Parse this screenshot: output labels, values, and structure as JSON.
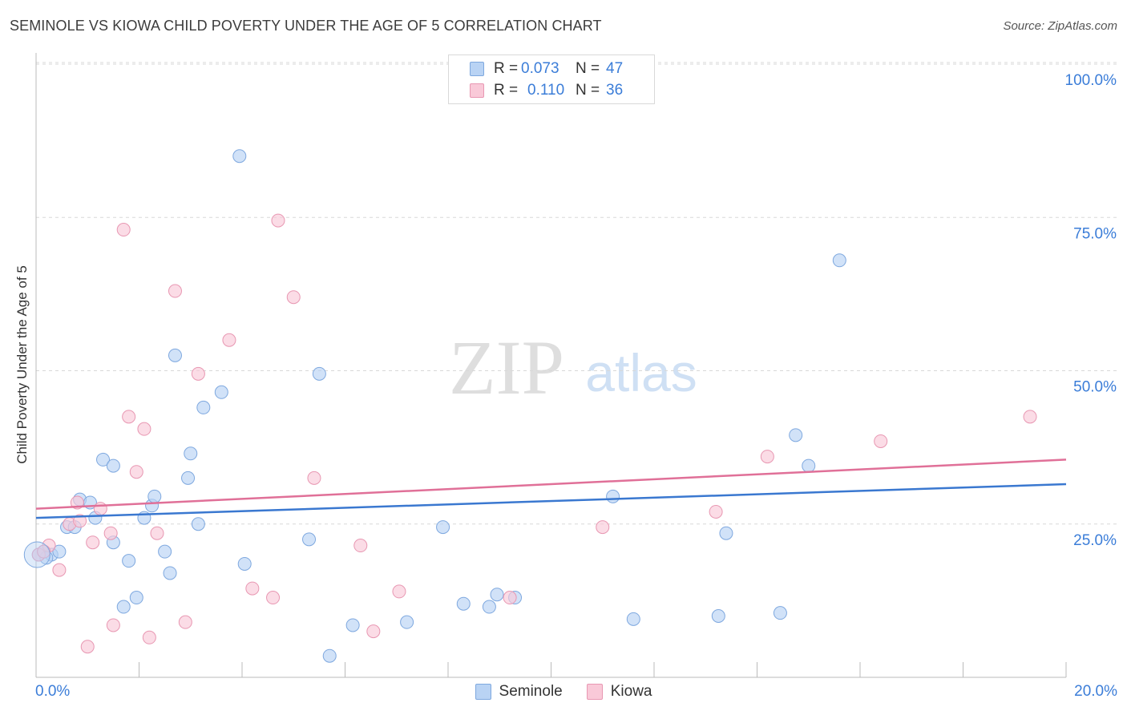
{
  "title": "SEMINOLE VS KIOWA CHILD POVERTY UNDER THE AGE OF 5 CORRELATION CHART",
  "source": "Source: ZipAtlas.com",
  "watermark": {
    "zip": "ZIP",
    "atlas": "atlas"
  },
  "legend_top": [
    {
      "r_label": "R =",
      "r_value": "0.073",
      "n_label": "N =",
      "n_value": "47"
    },
    {
      "r_label": "R =",
      "r_value": "0.110",
      "n_label": "N =",
      "n_value": "36"
    }
  ],
  "legend_bottom": [
    "Seminole",
    "Kiowa"
  ],
  "colors": {
    "seminole_fill": "#b9d3f4",
    "seminole_stroke": "#7ea8df",
    "seminole_line": "#3a78d0",
    "kiowa_fill": "#f9c9d8",
    "kiowa_stroke": "#e897b2",
    "kiowa_line": "#e07098",
    "axis_text": "#3b7dd8",
    "grid": "#d8d8d8"
  },
  "chart_data": {
    "type": "scatter",
    "title": "SEMINOLE VS KIOWA CHILD POVERTY UNDER THE AGE OF 5 CORRELATION CHART",
    "xlabel": "",
    "ylabel": "Child Poverty Under the Age of 5",
    "xlim": [
      0,
      20
    ],
    "ylim": [
      0,
      100
    ],
    "x_tick_labels": [
      "0.0%",
      "20.0%"
    ],
    "y_ticks": [
      25,
      50,
      75,
      100
    ],
    "y_tick_labels": [
      "25.0%",
      "50.0%",
      "75.0%",
      "100.0%"
    ],
    "grid": true,
    "legend_position": "top-center",
    "series": [
      {
        "name": "Seminole",
        "r": 0.073,
        "n": 47,
        "trend": {
          "x": [
            0,
            20
          ],
          "y": [
            26.0,
            31.5
          ]
        },
        "points": [
          {
            "x": 0.05,
            "y": 20.0
          },
          {
            "x": 0.15,
            "y": 20.5
          },
          {
            "x": 0.3,
            "y": 20.0
          },
          {
            "x": 0.45,
            "y": 20.5
          },
          {
            "x": 0.6,
            "y": 24.5
          },
          {
            "x": 0.75,
            "y": 24.5
          },
          {
            "x": 0.85,
            "y": 29.0
          },
          {
            "x": 1.05,
            "y": 28.5
          },
          {
            "x": 1.15,
            "y": 26.0
          },
          {
            "x": 1.3,
            "y": 35.5
          },
          {
            "x": 1.5,
            "y": 34.5
          },
          {
            "x": 1.5,
            "y": 22.0
          },
          {
            "x": 1.7,
            "y": 11.5
          },
          {
            "x": 1.8,
            "y": 19.0
          },
          {
            "x": 1.95,
            "y": 13.0
          },
          {
            "x": 2.1,
            "y": 26.0
          },
          {
            "x": 2.25,
            "y": 28.0
          },
          {
            "x": 2.3,
            "y": 29.5
          },
          {
            "x": 2.5,
            "y": 20.5
          },
          {
            "x": 2.6,
            "y": 17.0
          },
          {
            "x": 2.7,
            "y": 52.5
          },
          {
            "x": 2.95,
            "y": 32.5
          },
          {
            "x": 3.0,
            "y": 36.5
          },
          {
            "x": 3.15,
            "y": 25.0
          },
          {
            "x": 3.25,
            "y": 44.0
          },
          {
            "x": 3.6,
            "y": 46.5
          },
          {
            "x": 3.95,
            "y": 85.0
          },
          {
            "x": 4.05,
            "y": 18.5
          },
          {
            "x": 5.3,
            "y": 22.5
          },
          {
            "x": 5.5,
            "y": 49.5
          },
          {
            "x": 5.7,
            "y": 3.5
          },
          {
            "x": 6.15,
            "y": 8.5
          },
          {
            "x": 7.2,
            "y": 9.0
          },
          {
            "x": 7.9,
            "y": 24.5
          },
          {
            "x": 8.3,
            "y": 12.0
          },
          {
            "x": 8.8,
            "y": 11.5
          },
          {
            "x": 8.95,
            "y": 13.5
          },
          {
            "x": 9.3,
            "y": 13.0
          },
          {
            "x": 11.2,
            "y": 29.5
          },
          {
            "x": 11.6,
            "y": 9.5
          },
          {
            "x": 13.25,
            "y": 10.0
          },
          {
            "x": 13.4,
            "y": 23.5
          },
          {
            "x": 14.45,
            "y": 10.5
          },
          {
            "x": 14.75,
            "y": 39.5
          },
          {
            "x": 15.0,
            "y": 34.5
          },
          {
            "x": 15.6,
            "y": 68.0
          },
          {
            "x": 0.2,
            "y": 19.5
          }
        ]
      },
      {
        "name": "Kiowa",
        "r": 0.11,
        "n": 36,
        "trend": {
          "x": [
            0,
            20
          ],
          "y": [
            27.5,
            35.5
          ]
        },
        "points": [
          {
            "x": 0.05,
            "y": 20.0
          },
          {
            "x": 0.25,
            "y": 21.5
          },
          {
            "x": 0.45,
            "y": 17.5
          },
          {
            "x": 0.65,
            "y": 25.0
          },
          {
            "x": 0.8,
            "y": 28.5
          },
          {
            "x": 0.85,
            "y": 25.5
          },
          {
            "x": 1.0,
            "y": 5.0
          },
          {
            "x": 1.1,
            "y": 22.0
          },
          {
            "x": 1.25,
            "y": 27.5
          },
          {
            "x": 1.45,
            "y": 23.5
          },
          {
            "x": 1.5,
            "y": 8.5
          },
          {
            "x": 1.7,
            "y": 73.0
          },
          {
            "x": 1.8,
            "y": 42.5
          },
          {
            "x": 1.95,
            "y": 33.5
          },
          {
            "x": 2.1,
            "y": 40.5
          },
          {
            "x": 2.2,
            "y": 6.5
          },
          {
            "x": 2.35,
            "y": 23.5
          },
          {
            "x": 2.7,
            "y": 63.0
          },
          {
            "x": 2.9,
            "y": 9.0
          },
          {
            "x": 3.15,
            "y": 49.5
          },
          {
            "x": 3.75,
            "y": 55.0
          },
          {
            "x": 4.2,
            "y": 14.5
          },
          {
            "x": 4.6,
            "y": 13.0
          },
          {
            "x": 4.7,
            "y": 74.5
          },
          {
            "x": 5.0,
            "y": 62.0
          },
          {
            "x": 5.4,
            "y": 32.5
          },
          {
            "x": 6.3,
            "y": 21.5
          },
          {
            "x": 6.55,
            "y": 7.5
          },
          {
            "x": 7.05,
            "y": 14.0
          },
          {
            "x": 9.2,
            "y": 13.0
          },
          {
            "x": 11.0,
            "y": 24.5
          },
          {
            "x": 13.2,
            "y": 27.0
          },
          {
            "x": 14.2,
            "y": 36.0
          },
          {
            "x": 16.4,
            "y": 38.5
          },
          {
            "x": 19.3,
            "y": 42.5
          },
          {
            "x": 0.15,
            "y": 20.5
          }
        ]
      }
    ]
  }
}
